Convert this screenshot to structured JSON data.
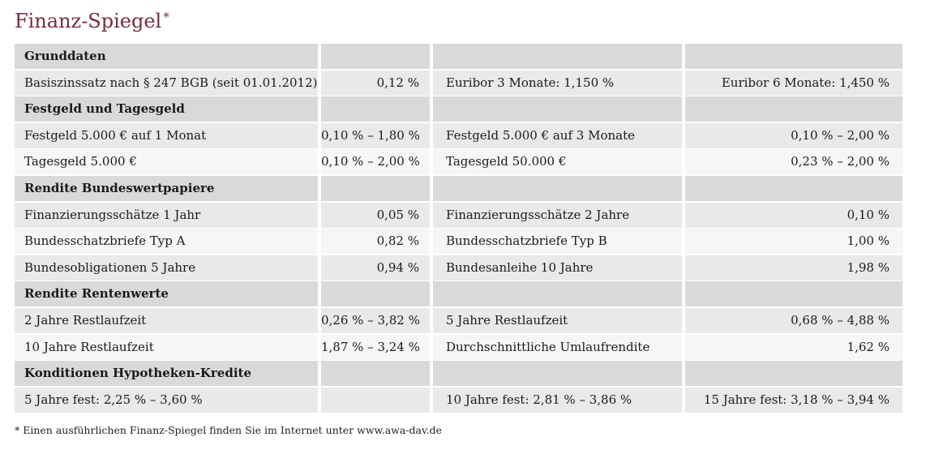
{
  "title": "Finanz-Spiegel",
  "title_mark": "*",
  "sections": [
    {
      "heading": "Grunddaten",
      "rows": [
        [
          "Basiszinssatz nach § 247 BGB (seit 01.01.2012)",
          "0,12 %",
          "Euribor 3 Monate: 1,150 %",
          "Euribor 6 Monate: 1,450 %"
        ]
      ]
    },
    {
      "heading": "Festgeld und Tagesgeld",
      "rows": [
        [
          "Festgeld 5.000 € auf 1 Monat",
          "0,10 % – 1,80 %",
          "Festgeld 5.000 € auf 3 Monate",
          "0,10 % – 2,00 %"
        ],
        [
          "Tagesgeld 5.000 €",
          "0,10 % – 2,00 %",
          "Tagesgeld 50.000 €",
          "0,23 % – 2,00 %"
        ]
      ]
    },
    {
      "heading": "Rendite Bundeswertpapiere",
      "rows": [
        [
          "Finanzierungsschätze 1 Jahr",
          "0,05 %",
          "Finanzierungsschätze 2 Jahre",
          "0,10 %"
        ],
        [
          "Bundesschatzbriefe Typ A",
          "0,82 %",
          "Bundesschatzbriefe Typ B",
          "1,00 %"
        ],
        [
          "Bundesobligationen 5 Jahre",
          "0,94 %",
          "Bundesanleihe 10 Jahre",
          "1,98 %"
        ]
      ]
    },
    {
      "heading": "Rendite Rentenwerte",
      "rows": [
        [
          "2 Jahre Restlaufzeit",
          "0,26 % – 3,82 %",
          "5 Jahre Restlaufzeit",
          "0,68 % – 4,88 %"
        ],
        [
          "10 Jahre Restlaufzeit",
          "1,87 % – 3,24 %",
          "Durchschnittliche Umlaufrendite",
          "1,62 %"
        ]
      ]
    },
    {
      "heading": "Konditionen Hypotheken-Kredite",
      "rows": [
        [
          "5 Jahre fest: 2,25 % – 3,60 %",
          "",
          "10 Jahre fest: 2,81 % – 3,86 %",
          "15 Jahre fest: 3,18 % – 3,94 %"
        ]
      ]
    }
  ],
  "footnote": "* Einen ausführlichen Finanz-Spiegel finden Sie im Internet unter www.awa-dav.de"
}
